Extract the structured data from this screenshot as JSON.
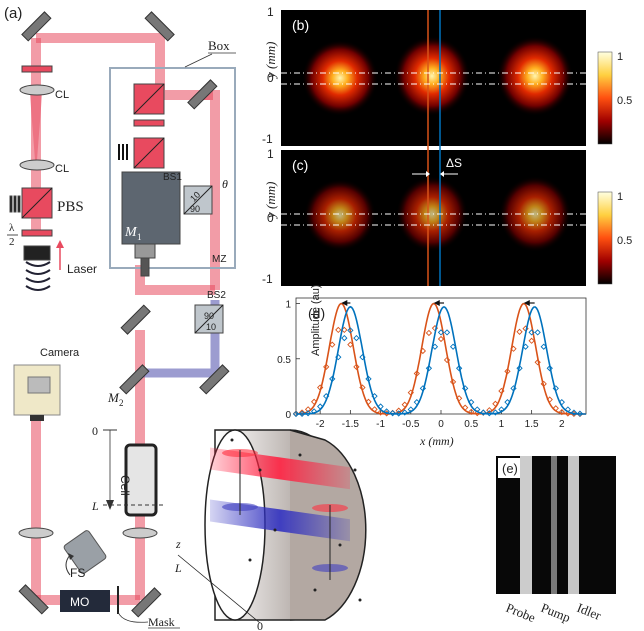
{
  "panels": {
    "a": "(a)",
    "b": "(b)",
    "c": "(c)",
    "d": "(d)",
    "e": "(e)"
  },
  "setup": {
    "box": "Box",
    "cl1": "CL",
    "cl2": "CL",
    "pbs": "PBS",
    "half": "λ",
    "two": "2",
    "laser": "Laser",
    "bs1": "BS1",
    "bs2": "BS2",
    "m1": "M",
    "m1sub": "1",
    "m2": "M",
    "m2sub": "2",
    "mz": "MZ",
    "theta": "θ",
    "split1a": "10",
    "split1b": "90",
    "split2a": "90",
    "split2b": "10",
    "camera": "Camera",
    "cell": "Cell",
    "z0": "0",
    "zL": "L",
    "fs": "FS",
    "mo": "MO",
    "mask": "Mask",
    "axis_z": "z",
    "axis_L": "L",
    "axis_0": "0"
  },
  "images": {
    "ylabel": "y (mm)",
    "yticks": [
      "1",
      "0",
      "-1"
    ],
    "colorbar_ticks": [
      "1",
      "0.5"
    ],
    "deltaS": "ΔS",
    "colors": {
      "hot_low": "#000000",
      "hot_mid": "#cc1a00",
      "hot_high": "#fff4a0"
    }
  },
  "chart_data": {
    "type": "line",
    "xlabel": "x (mm)",
    "ylabel": "Amplitude (au)",
    "xlim": [
      -2.4,
      2.4
    ],
    "ylim": [
      0,
      1.05
    ],
    "xticks": [
      "-2",
      "-1.5",
      "-1",
      "-0.5",
      "0",
      "0.5",
      "1",
      "1.5",
      "2"
    ],
    "yticks": [
      "0",
      "0.5",
      "1"
    ],
    "series": [
      {
        "color": "#d95319",
        "peaks": [
          {
            "center": -1.65,
            "amp": 1.0
          },
          {
            "center": -0.12,
            "amp": 1.0
          },
          {
            "center": 1.37,
            "amp": 1.0
          }
        ],
        "sigma": 0.28
      },
      {
        "color": "#0072bd",
        "peaks": [
          {
            "center": -1.5,
            "amp": 0.97
          },
          {
            "center": 0.05,
            "amp": 0.97
          },
          {
            "center": 1.55,
            "amp": 0.97
          }
        ],
        "sigma": 0.28
      }
    ]
  },
  "sidecam": {
    "labels": [
      "Probe",
      "Pump",
      "Idler"
    ]
  }
}
